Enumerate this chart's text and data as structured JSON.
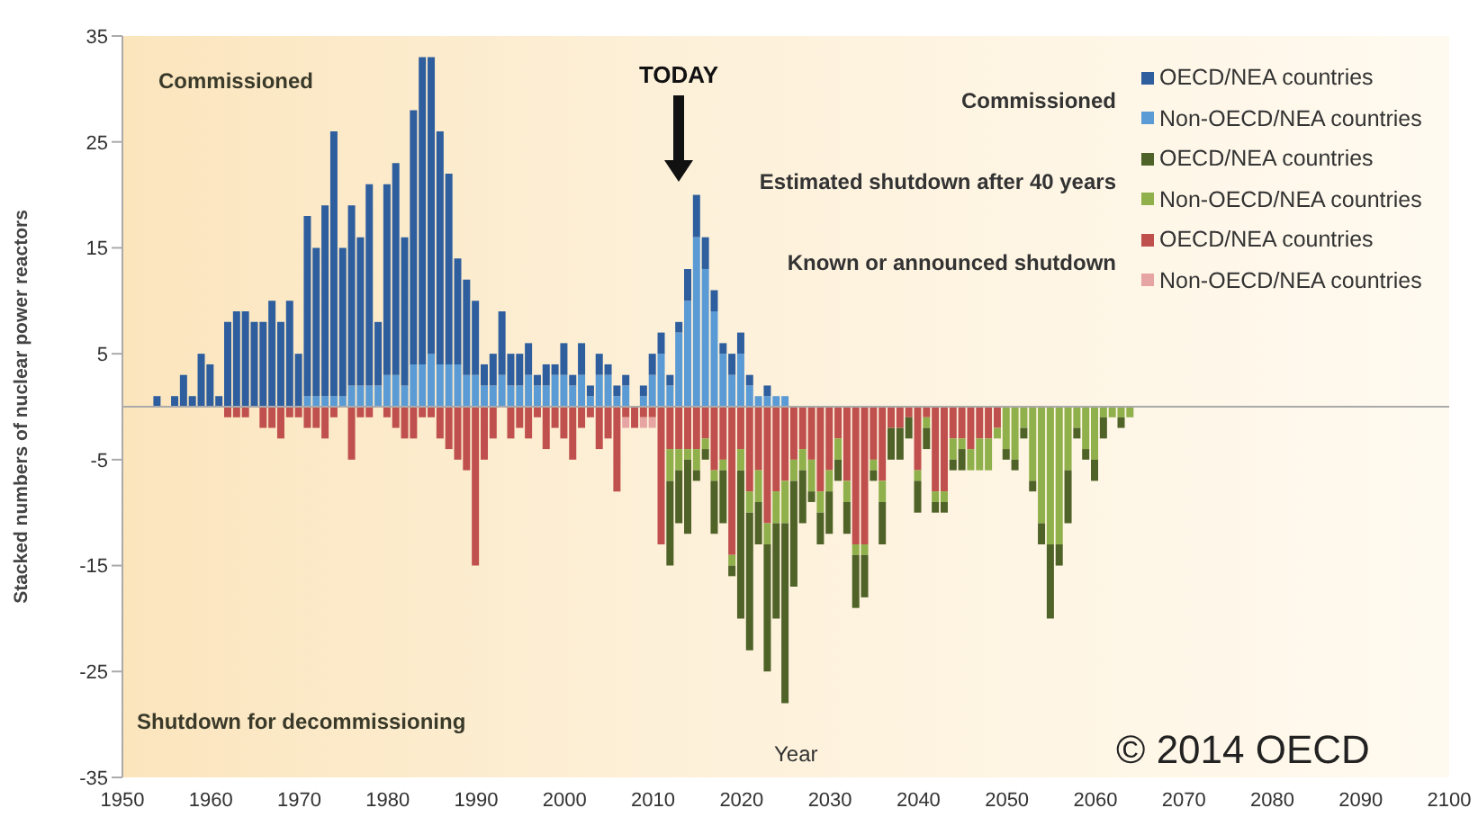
{
  "chart_data": {
    "type": "bar",
    "stacked": true,
    "ylabel": "Stacked numbers of nuclear power reactors",
    "xlabel": "Year",
    "x": [
      1954,
      1955,
      1956,
      1957,
      1958,
      1959,
      1960,
      1961,
      1962,
      1963,
      1964,
      1965,
      1966,
      1967,
      1968,
      1969,
      1970,
      1971,
      1972,
      1973,
      1974,
      1975,
      1976,
      1977,
      1978,
      1979,
      1980,
      1981,
      1982,
      1983,
      1984,
      1985,
      1986,
      1987,
      1988,
      1989,
      1990,
      1991,
      1992,
      1993,
      1994,
      1995,
      1996,
      1997,
      1998,
      1999,
      2000,
      2001,
      2002,
      2003,
      2004,
      2005,
      2006,
      2007,
      2008,
      2009,
      2010,
      2011,
      2012,
      2013,
      2014,
      2015,
      2016,
      2017,
      2018,
      2019,
      2020,
      2021,
      2022,
      2023,
      2024,
      2025,
      2026,
      2027,
      2028,
      2029,
      2030,
      2031,
      2032,
      2033,
      2034,
      2035,
      2036,
      2037,
      2038,
      2039,
      2040,
      2041,
      2042,
      2043,
      2044,
      2045,
      2046,
      2047,
      2048,
      2049,
      2050,
      2051,
      2052,
      2053,
      2054,
      2055,
      2056,
      2057,
      2058,
      2059,
      2060,
      2061,
      2062,
      2063,
      2064
    ],
    "series": [
      {
        "name": "Non-OECD/NEA countries",
        "color": "#5b9bd5",
        "values": [
          null,
          null,
          null,
          null,
          null,
          null,
          null,
          null,
          null,
          null,
          null,
          null,
          null,
          null,
          null,
          null,
          null,
          1,
          1,
          1,
          1,
          1,
          2,
          2,
          2,
          2,
          3,
          3,
          2,
          4,
          4,
          5,
          4,
          4,
          4,
          3,
          3,
          2,
          2,
          3,
          2,
          2,
          3,
          2,
          2,
          3,
          3,
          2,
          3,
          1,
          3,
          3,
          1,
          2,
          null,
          1,
          3,
          5,
          2,
          7,
          10,
          16,
          13,
          9,
          5,
          3,
          5,
          2,
          1,
          1,
          1,
          1,
          null,
          null,
          null,
          null,
          null,
          null,
          null,
          null,
          null,
          null,
          null,
          null,
          null,
          null,
          null,
          null,
          null,
          null,
          null,
          null,
          null,
          null,
          null,
          null,
          null,
          null,
          null,
          null,
          null,
          null,
          null,
          null,
          null,
          null,
          null,
          null,
          null,
          null,
          null
        ]
      },
      {
        "name": "OECD/NEA countries",
        "color": "#2e5e9e",
        "values": [
          1,
          null,
          1,
          3,
          1,
          5,
          4,
          1,
          8,
          9,
          9,
          8,
          8,
          10,
          8,
          10,
          5,
          17,
          14,
          18,
          25,
          14,
          17,
          14,
          19,
          6,
          18,
          20,
          14,
          24,
          29,
          28,
          22,
          18,
          10,
          9,
          7,
          2,
          3,
          6,
          3,
          3,
          3,
          1,
          2,
          1,
          3,
          1,
          3,
          1,
          2,
          1,
          1,
          1,
          null,
          1,
          2,
          2,
          1,
          1,
          3,
          4,
          3,
          2,
          1,
          2,
          2,
          1,
          null,
          1,
          null,
          null,
          null,
          null,
          null,
          null,
          null,
          null,
          null,
          null,
          null,
          null,
          null,
          null,
          null,
          null,
          null,
          null,
          null,
          null,
          null,
          null,
          null,
          null,
          null,
          null,
          null,
          null,
          null,
          null,
          null,
          null,
          null,
          null,
          null,
          null,
          null,
          null,
          null,
          null,
          null
        ]
      },
      {
        "name": "OECD/NEA countries",
        "color": "#c0504d",
        "values": [
          null,
          null,
          null,
          null,
          null,
          null,
          null,
          null,
          -1,
          -1,
          -1,
          null,
          -2,
          -2,
          -3,
          -1,
          -1,
          -2,
          -2,
          -3,
          -1,
          null,
          -5,
          -1,
          -1,
          null,
          -1,
          -2,
          -3,
          -3,
          -1,
          -1,
          -3,
          -4,
          -5,
          -6,
          -15,
          -5,
          -3,
          null,
          -3,
          -2,
          -3,
          -1,
          -4,
          -2,
          -3,
          -5,
          -2,
          -1,
          -4,
          -3,
          -8,
          -1,
          -2,
          -1,
          -1,
          -13,
          -4,
          -4,
          -4,
          -4,
          -3,
          -6,
          -5,
          -14,
          -4,
          -8,
          -6,
          -11,
          -8,
          -7,
          -5,
          -4,
          -5,
          -8,
          -6,
          -3,
          -7,
          -13,
          -13,
          -5,
          -7,
          -2,
          -2,
          -1,
          -6,
          -1,
          -8,
          -8,
          -3,
          -3,
          -4,
          -3,
          -3,
          -2,
          null,
          null,
          null,
          null,
          null,
          null,
          null,
          null,
          null,
          null,
          null,
          null,
          null,
          null,
          null
        ]
      },
      {
        "name": "Non-OECD/NEA countries",
        "color": "#e6a5a3",
        "values": [
          null,
          null,
          null,
          null,
          null,
          null,
          null,
          null,
          null,
          null,
          null,
          null,
          null,
          null,
          null,
          null,
          null,
          null,
          null,
          null,
          null,
          null,
          null,
          null,
          null,
          null,
          null,
          null,
          null,
          null,
          null,
          null,
          null,
          null,
          null,
          null,
          null,
          null,
          null,
          null,
          null,
          null,
          null,
          null,
          null,
          null,
          null,
          null,
          null,
          null,
          null,
          null,
          null,
          -1,
          null,
          -1,
          -1,
          null,
          null,
          null,
          null,
          null,
          null,
          null,
          null,
          null,
          null,
          null,
          null,
          null,
          null,
          null,
          null,
          null,
          null,
          null,
          null,
          null,
          null,
          null,
          null,
          null,
          null,
          null,
          null,
          null,
          null,
          null,
          null,
          null,
          null,
          null,
          null,
          null,
          null,
          null,
          null,
          null,
          null,
          null,
          null,
          null,
          null,
          null,
          null,
          null,
          null,
          null,
          null,
          null,
          null
        ]
      },
      {
        "name": "Non-OECD/NEA countries",
        "color": "#8fb04a",
        "values": [
          null,
          null,
          null,
          null,
          null,
          null,
          null,
          null,
          null,
          null,
          null,
          null,
          null,
          null,
          null,
          null,
          null,
          null,
          null,
          null,
          null,
          null,
          null,
          null,
          null,
          null,
          null,
          null,
          null,
          null,
          null,
          null,
          null,
          null,
          null,
          null,
          null,
          null,
          null,
          null,
          null,
          null,
          null,
          null,
          null,
          null,
          null,
          null,
          null,
          null,
          null,
          null,
          null,
          null,
          null,
          null,
          null,
          null,
          -3,
          -2,
          -1,
          -2,
          -1,
          -1,
          -1,
          -1,
          -2,
          -2,
          -3,
          -2,
          -3,
          -4,
          -2,
          -2,
          -3,
          -2,
          -2,
          -2,
          -2,
          -1,
          -1,
          -1,
          -2,
          null,
          null,
          null,
          -1,
          -1,
          -1,
          -1,
          -2,
          -1,
          -2,
          -3,
          -3,
          -1,
          -4,
          -5,
          -2,
          -7,
          -11,
          -13,
          -13,
          -6,
          -2,
          -4,
          -5,
          -1,
          -1,
          -1,
          -1
        ]
      },
      {
        "name": "OECD/NEA countries",
        "color": "#4f6228",
        "values": [
          null,
          null,
          null,
          null,
          null,
          null,
          null,
          null,
          null,
          null,
          null,
          null,
          null,
          null,
          null,
          null,
          null,
          null,
          null,
          null,
          null,
          null,
          null,
          null,
          null,
          null,
          null,
          null,
          null,
          null,
          null,
          null,
          null,
          null,
          null,
          null,
          null,
          null,
          null,
          null,
          null,
          null,
          null,
          null,
          null,
          null,
          null,
          null,
          null,
          null,
          null,
          null,
          null,
          null,
          null,
          null,
          null,
          null,
          -8,
          -5,
          -7,
          -1,
          -1,
          -5,
          -5,
          -1,
          -14,
          -13,
          -4,
          -12,
          -9,
          -17,
          -10,
          -5,
          -1,
          -3,
          -4,
          -2,
          -3,
          -5,
          -4,
          -1,
          -4,
          -3,
          -3,
          -2,
          -3,
          -2,
          -1,
          -1,
          -1,
          -2,
          null,
          null,
          null,
          null,
          -1,
          -1,
          -1,
          -1,
          -2,
          -7,
          -2,
          -5,
          -1,
          -1,
          -2,
          -2,
          null,
          -1,
          null
        ]
      }
    ],
    "xlim": [
      1950,
      2100
    ],
    "xticks": [
      1950,
      1960,
      1970,
      1980,
      1990,
      2000,
      2010,
      2020,
      2030,
      2040,
      2050,
      2060,
      2070,
      2080,
      2090,
      2100
    ],
    "ylim": [
      -35,
      35
    ],
    "yticks": [
      -35,
      -25,
      -15,
      -5,
      5,
      15,
      25,
      35
    ],
    "legend": "top right",
    "annotations": [
      "Commissioned",
      "TODAY",
      "Commissioned",
      "Estimated shutdown after 40 years",
      "Known or announced shutdown",
      "Shutdown for decommissioning",
      "© 2014 OECD"
    ]
  }
}
